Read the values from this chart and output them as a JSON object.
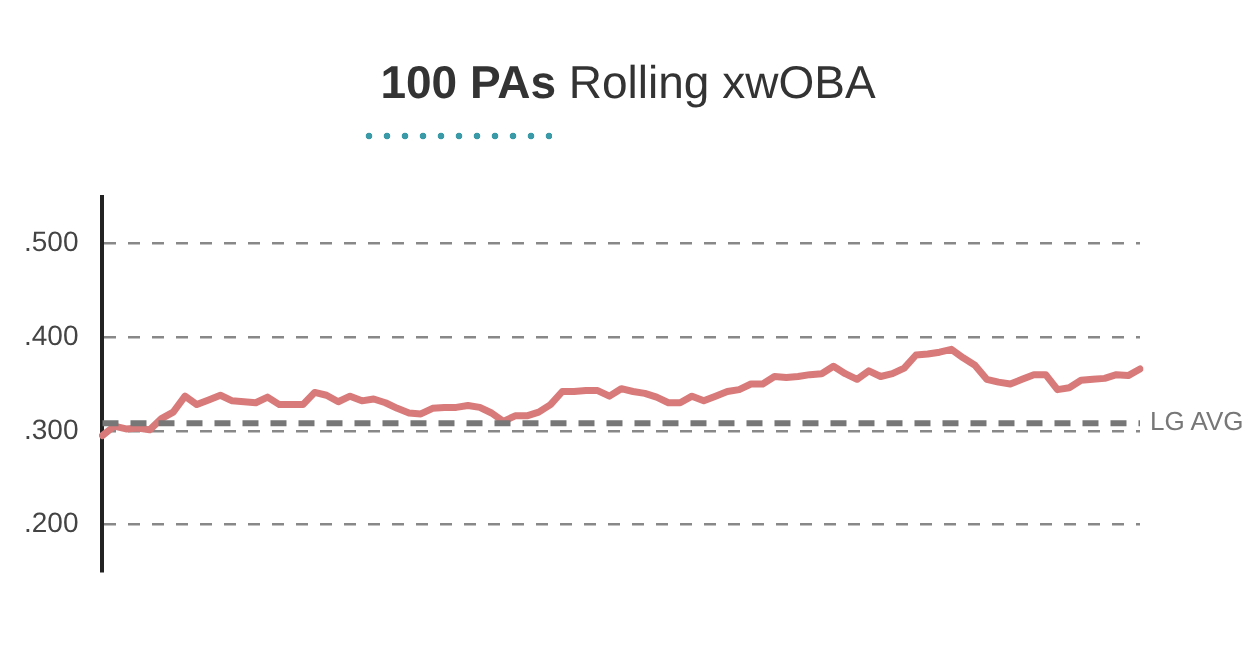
{
  "chart_data": {
    "type": "line",
    "title": "100 PAs Rolling xwOBA",
    "categories": [
      null,
      null,
      null,
      null,
      null,
      null,
      null,
      null,
      null,
      null,
      null,
      null,
      null,
      null,
      null,
      null,
      null,
      null,
      null,
      null,
      null,
      null,
      null,
      null,
      null,
      null,
      null,
      null,
      null,
      null,
      null,
      null,
      null,
      null,
      null,
      null,
      null,
      null,
      null,
      null,
      null,
      null,
      null,
      null,
      null,
      null,
      null,
      null,
      null,
      null,
      null,
      null,
      null,
      null,
      null,
      null,
      null,
      null,
      null,
      null,
      null,
      null,
      null,
      null,
      null,
      null,
      null,
      null,
      null,
      null,
      null,
      null,
      null,
      null,
      null,
      null,
      null,
      null,
      null,
      null,
      null,
      null,
      null,
      null,
      null,
      null,
      null,
      null,
      null
    ],
    "series": [
      {
        "values": [
          0.295,
          0.305,
          0.302,
          0.303,
          0.301,
          0.313,
          0.32,
          0.337,
          0.328,
          0.333,
          0.338,
          0.332,
          0.331,
          0.33,
          0.336,
          0.328,
          0.328,
          0.328,
          0.341,
          0.338,
          0.331,
          0.337,
          0.332,
          0.334,
          0.33,
          0.324,
          0.319,
          0.318,
          0.324,
          0.325,
          0.325,
          0.327,
          0.325,
          0.319,
          0.31,
          0.316,
          0.316,
          0.32,
          0.328,
          0.342,
          0.342,
          0.343,
          0.343,
          0.337,
          0.345,
          0.342,
          0.34,
          0.336,
          0.33,
          0.33,
          0.337,
          0.332,
          0.337,
          0.342,
          0.344,
          0.35,
          0.35,
          0.358,
          0.357,
          0.358,
          0.36,
          0.361,
          0.369,
          0.361,
          0.355,
          0.364,
          0.358,
          0.361,
          0.367,
          0.381,
          0.382,
          0.384,
          0.387,
          0.378,
          0.37,
          0.355,
          0.352,
          0.35,
          0.355,
          0.36,
          0.36,
          0.344,
          0.346,
          0.354,
          0.355,
          0.356,
          0.36,
          0.359,
          0.366
        ],
        "color": "#d87a7a"
      }
    ],
    "ylim": [
      0.15,
      0.55
    ],
    "yticks": [
      {
        "value": 0.2,
        "label": ".200"
      },
      {
        "value": 0.3,
        "label": ".300"
      },
      {
        "value": 0.4,
        "label": ".400"
      },
      {
        "value": 0.5,
        "label": ".500"
      }
    ],
    "grid": "y",
    "marker": "none",
    "line_style": "solid",
    "legend": false,
    "tick_labels": "y",
    "ref_lines": [
      {
        "axis": "y",
        "value": 0.308,
        "label": "LG AVG",
        "color": "#777777",
        "line_style": "dashed"
      }
    ]
  }
}
